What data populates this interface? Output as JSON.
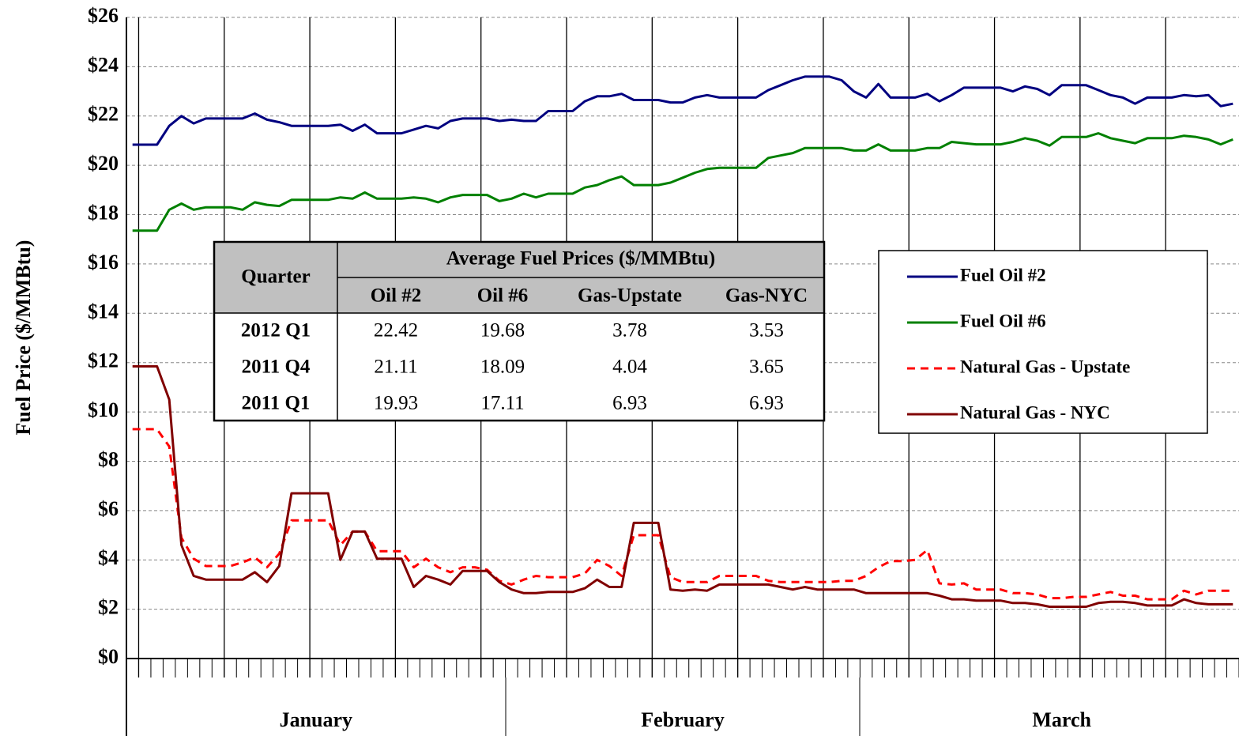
{
  "chart_data": {
    "type": "line",
    "y_label": "Fuel Price ($/MMBtu)",
    "categories": [
      null,
      null,
      null,
      null,
      null,
      null,
      null,
      null,
      null,
      null,
      null,
      null,
      null,
      null,
      null,
      "January",
      null,
      null,
      null,
      null,
      null,
      null,
      null,
      null,
      null,
      null,
      null,
      null,
      null,
      null,
      null,
      null,
      null,
      null,
      null,
      null,
      null,
      null,
      null,
      null,
      null,
      null,
      null,
      null,
      null,
      "February",
      null,
      null,
      null,
      null,
      null,
      null,
      null,
      null,
      null,
      null,
      null,
      null,
      null,
      null,
      null,
      null,
      null,
      null,
      null,
      null,
      null,
      null,
      null,
      null,
      null,
      null,
      null,
      null,
      null,
      null,
      "March",
      null,
      null,
      null,
      null,
      null,
      null,
      null,
      null,
      null,
      null,
      null,
      null,
      null,
      null
    ],
    "ylim": [
      0,
      26
    ],
    "yticks": [
      {
        "value": 0,
        "label": "$0"
      },
      {
        "value": 2,
        "label": "$2"
      },
      {
        "value": 4,
        "label": "$4"
      },
      {
        "value": 6,
        "label": "$6"
      },
      {
        "value": 8,
        "label": "$8"
      },
      {
        "value": 10,
        "label": "$10"
      },
      {
        "value": 12,
        "label": "$12"
      },
      {
        "value": 14,
        "label": "$14"
      },
      {
        "value": 16,
        "label": "$16"
      },
      {
        "value": 18,
        "label": "$18"
      },
      {
        "value": 20,
        "label": "$20"
      },
      {
        "value": 22,
        "label": "$22"
      },
      {
        "value": 24,
        "label": "$24"
      },
      {
        "value": 26,
        "label": "$26"
      }
    ],
    "grid": true,
    "legend": "right",
    "series": [
      {
        "name": "Fuel Oil #2",
        "color": "#000080",
        "style": "solid",
        "values": [
          20.84,
          20.84,
          20.84,
          21.6,
          22.0,
          21.7,
          21.9,
          21.9,
          21.9,
          21.9,
          22.1,
          21.85,
          21.75,
          21.6,
          21.6,
          21.6,
          21.6,
          21.65,
          21.4,
          21.65,
          21.3,
          21.3,
          21.3,
          21.45,
          21.6,
          21.5,
          21.8,
          21.9,
          21.9,
          21.9,
          21.8,
          21.85,
          21.8,
          21.8,
          22.2,
          22.2,
          22.2,
          22.6,
          22.8,
          22.8,
          22.9,
          22.65,
          22.65,
          22.65,
          22.55,
          22.55,
          22.75,
          22.85,
          22.75,
          22.75,
          22.75,
          22.75,
          23.05,
          23.25,
          23.45,
          23.6,
          23.6,
          23.6,
          23.45,
          23.0,
          22.75,
          23.3,
          22.75,
          22.75,
          22.75,
          22.9,
          22.6,
          22.85,
          23.15,
          23.15,
          23.15,
          23.15,
          23.0,
          23.2,
          23.1,
          22.85,
          23.25,
          23.25,
          23.25,
          23.05,
          22.85,
          22.75,
          22.5,
          22.75,
          22.75,
          22.75,
          22.85,
          22.8,
          22.85,
          22.4,
          22.5
        ]
      },
      {
        "name": "Fuel Oil #6",
        "color": "#008000",
        "style": "solid",
        "values": [
          17.35,
          17.35,
          17.35,
          18.2,
          18.45,
          18.2,
          18.3,
          18.3,
          18.3,
          18.2,
          18.5,
          18.4,
          18.35,
          18.6,
          18.6,
          18.6,
          18.6,
          18.7,
          18.65,
          18.9,
          18.65,
          18.65,
          18.65,
          18.7,
          18.65,
          18.5,
          18.7,
          18.8,
          18.8,
          18.8,
          18.55,
          18.65,
          18.85,
          18.7,
          18.85,
          18.85,
          18.85,
          19.1,
          19.2,
          19.4,
          19.55,
          19.2,
          19.2,
          19.2,
          19.3,
          19.5,
          19.7,
          19.85,
          19.9,
          19.9,
          19.9,
          19.9,
          20.3,
          20.4,
          20.5,
          20.7,
          20.7,
          20.7,
          20.7,
          20.6,
          20.6,
          20.85,
          20.6,
          20.6,
          20.6,
          20.7,
          20.7,
          20.95,
          20.9,
          20.85,
          20.85,
          20.85,
          20.95,
          21.1,
          21.0,
          20.8,
          21.15,
          21.15,
          21.15,
          21.3,
          21.1,
          21.0,
          20.9,
          21.1,
          21.1,
          21.1,
          21.2,
          21.15,
          21.05,
          20.85,
          21.05
        ]
      },
      {
        "name": "Natural Gas - Upstate",
        "color": "#ff0000",
        "style": "dashed",
        "values": [
          9.3,
          9.3,
          9.3,
          8.6,
          4.9,
          4.05,
          3.75,
          3.75,
          3.75,
          3.9,
          4.1,
          3.7,
          4.25,
          5.6,
          5.6,
          5.6,
          5.6,
          4.6,
          5.15,
          5.15,
          4.35,
          4.35,
          4.35,
          3.7,
          4.05,
          3.7,
          3.5,
          3.7,
          3.7,
          3.6,
          3.15,
          3.0,
          3.2,
          3.35,
          3.3,
          3.3,
          3.3,
          3.45,
          4.0,
          3.75,
          3.35,
          5.0,
          5.0,
          5.0,
          3.3,
          3.1,
          3.1,
          3.1,
          3.35,
          3.35,
          3.35,
          3.35,
          3.15,
          3.1,
          3.1,
          3.1,
          3.1,
          3.1,
          3.15,
          3.15,
          3.35,
          3.7,
          3.95,
          3.95,
          4.0,
          4.4,
          3.05,
          3.0,
          3.05,
          2.8,
          2.8,
          2.8,
          2.65,
          2.65,
          2.6,
          2.45,
          2.45,
          2.5,
          2.5,
          2.6,
          2.7,
          2.55,
          2.55,
          2.4,
          2.4,
          2.4,
          2.75,
          2.6,
          2.75,
          2.75,
          2.75
        ]
      },
      {
        "name": "Natural Gas - NYC",
        "color": "#800000",
        "style": "solid",
        "values": [
          11.85,
          11.85,
          11.85,
          10.5,
          4.6,
          3.35,
          3.2,
          3.2,
          3.2,
          3.2,
          3.5,
          3.1,
          3.75,
          6.7,
          6.7,
          6.7,
          6.7,
          4.0,
          5.15,
          5.15,
          4.05,
          4.05,
          4.05,
          2.9,
          3.35,
          3.2,
          3.0,
          3.55,
          3.55,
          3.55,
          3.1,
          2.8,
          2.65,
          2.65,
          2.7,
          2.7,
          2.7,
          2.85,
          3.2,
          2.9,
          2.9,
          5.5,
          5.5,
          5.5,
          2.8,
          2.75,
          2.8,
          2.75,
          3.0,
          3.0,
          3.0,
          3.0,
          3.0,
          2.9,
          2.8,
          2.9,
          2.8,
          2.8,
          2.8,
          2.8,
          2.65,
          2.65,
          2.65,
          2.65,
          2.65,
          2.65,
          2.55,
          2.4,
          2.4,
          2.35,
          2.35,
          2.35,
          2.25,
          2.25,
          2.2,
          2.1,
          2.1,
          2.1,
          2.1,
          2.25,
          2.3,
          2.3,
          2.25,
          2.15,
          2.15,
          2.15,
          2.4,
          2.25,
          2.2,
          2.2,
          2.2
        ]
      }
    ],
    "table": {
      "header": "Quarter",
      "group": "Average Fuel Prices ($/MMBtu)",
      "columns": [
        "Oil #2",
        "Oil #6",
        "Gas-Upstate",
        "Gas-NYC"
      ],
      "rows": [
        [
          "2012 Q1",
          22.42,
          19.68,
          3.78,
          3.53
        ],
        [
          "2011 Q4",
          21.11,
          18.09,
          4.04,
          3.65
        ],
        [
          "2011 Q1",
          19.93,
          17.11,
          6.93,
          6.93
        ]
      ]
    }
  }
}
